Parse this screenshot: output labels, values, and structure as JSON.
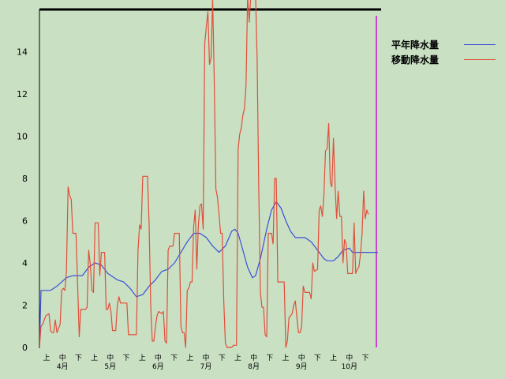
{
  "chart_data": {
    "type": "line",
    "ylim": [
      0,
      16
    ],
    "yticks": [
      0,
      2,
      4,
      6,
      8,
      10,
      12,
      14
    ],
    "ytick_labels": [
      "0",
      "2",
      "4",
      "6",
      "8",
      "10",
      "12",
      "14"
    ],
    "x_range": [
      1,
      214
    ],
    "dekad_labels": [
      "上",
      "中",
      "下",
      "上",
      "中",
      "下",
      "上",
      "中",
      "下",
      "上",
      "中",
      "下",
      "上",
      "中",
      "下",
      "上",
      "中",
      "下",
      "上",
      "中",
      "下"
    ],
    "months": [
      "4月",
      "5月",
      "6月",
      "7月",
      "8月",
      "9月",
      "10月"
    ],
    "grid": false,
    "legend_position": "top-right",
    "series": [
      {
        "name": "平年降水量",
        "color": "#3b4fd8",
        "points": [
          [
            1,
            0
          ],
          [
            2,
            2.7
          ],
          [
            8,
            2.7
          ],
          [
            12,
            2.9
          ],
          [
            18,
            3.3
          ],
          [
            22,
            3.4
          ],
          [
            28,
            3.4
          ],
          [
            32,
            3.8
          ],
          [
            36,
            4.0
          ],
          [
            40,
            3.9
          ],
          [
            44,
            3.5
          ],
          [
            50,
            3.2
          ],
          [
            54,
            3.1
          ],
          [
            58,
            2.8
          ],
          [
            62,
            2.4
          ],
          [
            66,
            2.5
          ],
          [
            70,
            2.9
          ],
          [
            74,
            3.2
          ],
          [
            78,
            3.6
          ],
          [
            82,
            3.7
          ],
          [
            86,
            4.0
          ],
          [
            90,
            4.5
          ],
          [
            94,
            5.0
          ],
          [
            98,
            5.4
          ],
          [
            102,
            5.4
          ],
          [
            106,
            5.2
          ],
          [
            110,
            4.8
          ],
          [
            114,
            4.5
          ],
          [
            118,
            4.8
          ],
          [
            122,
            5.5
          ],
          [
            124,
            5.6
          ],
          [
            126,
            5.4
          ],
          [
            129,
            4.6
          ],
          [
            132,
            3.8
          ],
          [
            135,
            3.3
          ],
          [
            137,
            3.4
          ],
          [
            140,
            4.2
          ],
          [
            144,
            5.6
          ],
          [
            147,
            6.5
          ],
          [
            150,
            6.9
          ],
          [
            153,
            6.6
          ],
          [
            156,
            6.0
          ],
          [
            159,
            5.5
          ],
          [
            162,
            5.2
          ],
          [
            168,
            5.2
          ],
          [
            172,
            5.0
          ],
          [
            176,
            4.6
          ],
          [
            180,
            4.2
          ],
          [
            182,
            4.1
          ],
          [
            186,
            4.1
          ],
          [
            189,
            4.3
          ],
          [
            192,
            4.6
          ],
          [
            196,
            4.7
          ],
          [
            198,
            4.5
          ],
          [
            214,
            4.5
          ]
        ]
      },
      {
        "name": "移動降水量",
        "color": "#e24d39",
        "points": [
          [
            1,
            0
          ],
          [
            2,
            1.0
          ],
          [
            3,
            1.1
          ],
          [
            5,
            1.5
          ],
          [
            7,
            1.6
          ],
          [
            8,
            0.8
          ],
          [
            9,
            0.7
          ],
          [
            10,
            0.7
          ],
          [
            11,
            1.3
          ],
          [
            12,
            0.7
          ],
          [
            13,
            0.9
          ],
          [
            14,
            1.1
          ],
          [
            15,
            2.7
          ],
          [
            16,
            2.8
          ],
          [
            17,
            2.7
          ],
          [
            18,
            3.6
          ],
          [
            19,
            7.6
          ],
          [
            20,
            7.2
          ],
          [
            21,
            7.0
          ],
          [
            22,
            5.4
          ],
          [
            24,
            5.4
          ],
          [
            25,
            3.1
          ],
          [
            26,
            0.5
          ],
          [
            27,
            1.8
          ],
          [
            30,
            1.8
          ],
          [
            31,
            1.9
          ],
          [
            32,
            4.6
          ],
          [
            33,
            3.9
          ],
          [
            34,
            2.7
          ],
          [
            35,
            2.6
          ],
          [
            36,
            5.9
          ],
          [
            38,
            5.9
          ],
          [
            39,
            3.4
          ],
          [
            40,
            4.5
          ],
          [
            42,
            4.5
          ],
          [
            43,
            1.8
          ],
          [
            44,
            1.8
          ],
          [
            45,
            2.1
          ],
          [
            46,
            1.7
          ],
          [
            47,
            0.8
          ],
          [
            49,
            0.8
          ],
          [
            50,
            2.0
          ],
          [
            51,
            2.4
          ],
          [
            52,
            2.1
          ],
          [
            56,
            2.1
          ],
          [
            57,
            0.6
          ],
          [
            62,
            0.6
          ],
          [
            63,
            4.6
          ],
          [
            64,
            5.8
          ],
          [
            65,
            5.6
          ],
          [
            66,
            8.1
          ],
          [
            69,
            8.1
          ],
          [
            70,
            5.8
          ],
          [
            71,
            2.0
          ],
          [
            72,
            0.3
          ],
          [
            73,
            0.3
          ],
          [
            74,
            1.0
          ],
          [
            75,
            1.5
          ],
          [
            76,
            1.7
          ],
          [
            78,
            1.6
          ],
          [
            79,
            1.7
          ],
          [
            80,
            0.3
          ],
          [
            81,
            0.2
          ],
          [
            82,
            4.6
          ],
          [
            83,
            4.8
          ],
          [
            85,
            4.8
          ],
          [
            86,
            5.4
          ],
          [
            89,
            5.4
          ],
          [
            90,
            1.0
          ],
          [
            91,
            0.7
          ],
          [
            92,
            0.7
          ],
          [
            93,
            0.0
          ],
          [
            94,
            2.7
          ],
          [
            95,
            2.8
          ],
          [
            96,
            3.1
          ],
          [
            97,
            3.1
          ],
          [
            98,
            5.7
          ],
          [
            99,
            6.5
          ],
          [
            100,
            3.7
          ],
          [
            101,
            5.8
          ],
          [
            102,
            6.7
          ],
          [
            103,
            6.8
          ],
          [
            104,
            5.6
          ],
          [
            105,
            14.4
          ],
          [
            106,
            15.2
          ],
          [
            107,
            15.9
          ],
          [
            108,
            13.4
          ],
          [
            109,
            13.7
          ],
          [
            110,
            16.5
          ],
          [
            111,
            12.7
          ],
          [
            112,
            7.5
          ],
          [
            113,
            7.1
          ],
          [
            114,
            6.3
          ],
          [
            115,
            5.4
          ],
          [
            116,
            5.4
          ],
          [
            117,
            2.2
          ],
          [
            118,
            0.2
          ],
          [
            119,
            0.0
          ],
          [
            122,
            0.0
          ],
          [
            123,
            0.1
          ],
          [
            124,
            0.1
          ],
          [
            125,
            0.1
          ],
          [
            126,
            9.4
          ],
          [
            127,
            10.1
          ],
          [
            128,
            10.4
          ],
          [
            129,
            11.0
          ],
          [
            130,
            11.3
          ],
          [
            131,
            12.4
          ],
          [
            132,
            16.6
          ],
          [
            133,
            15.4
          ],
          [
            134,
            16.7
          ],
          [
            135,
            16.6
          ],
          [
            136,
            16.7
          ],
          [
            137,
            16.7
          ],
          [
            138,
            13.6
          ],
          [
            139,
            7.6
          ],
          [
            140,
            2.6
          ],
          [
            141,
            1.9
          ],
          [
            142,
            1.9
          ],
          [
            143,
            0.6
          ],
          [
            144,
            0.5
          ],
          [
            145,
            5.4
          ],
          [
            147,
            5.4
          ],
          [
            148,
            4.9
          ],
          [
            149,
            8.0
          ],
          [
            150,
            8.0
          ],
          [
            151,
            3.1
          ],
          [
            155,
            3.1
          ],
          [
            156,
            0.0
          ],
          [
            157,
            0.3
          ],
          [
            158,
            1.4
          ],
          [
            160,
            1.6
          ],
          [
            161,
            2.0
          ],
          [
            162,
            2.2
          ],
          [
            163,
            1.4
          ],
          [
            164,
            0.7
          ],
          [
            165,
            0.7
          ],
          [
            166,
            1.0
          ],
          [
            167,
            2.9
          ],
          [
            168,
            2.6
          ],
          [
            171,
            2.6
          ],
          [
            172,
            2.3
          ],
          [
            173,
            4.0
          ],
          [
            174,
            3.6
          ],
          [
            176,
            3.7
          ],
          [
            177,
            6.5
          ],
          [
            178,
            6.7
          ],
          [
            179,
            6.2
          ],
          [
            180,
            7.2
          ],
          [
            181,
            9.3
          ],
          [
            182,
            9.4
          ],
          [
            183,
            10.6
          ],
          [
            184,
            7.8
          ],
          [
            185,
            7.6
          ],
          [
            186,
            9.9
          ],
          [
            187,
            7.7
          ],
          [
            188,
            6.1
          ],
          [
            189,
            7.4
          ],
          [
            190,
            6.2
          ],
          [
            191,
            6.2
          ],
          [
            192,
            4.0
          ],
          [
            193,
            5.1
          ],
          [
            194,
            4.9
          ],
          [
            195,
            3.5
          ],
          [
            198,
            3.5
          ],
          [
            199,
            5.9
          ],
          [
            200,
            3.5
          ],
          [
            201,
            3.7
          ],
          [
            202,
            3.8
          ],
          [
            203,
            4.4
          ],
          [
            204,
            5.4
          ],
          [
            205,
            7.4
          ],
          [
            206,
            6.1
          ],
          [
            207,
            6.5
          ],
          [
            208,
            6.3
          ]
        ]
      }
    ]
  }
}
